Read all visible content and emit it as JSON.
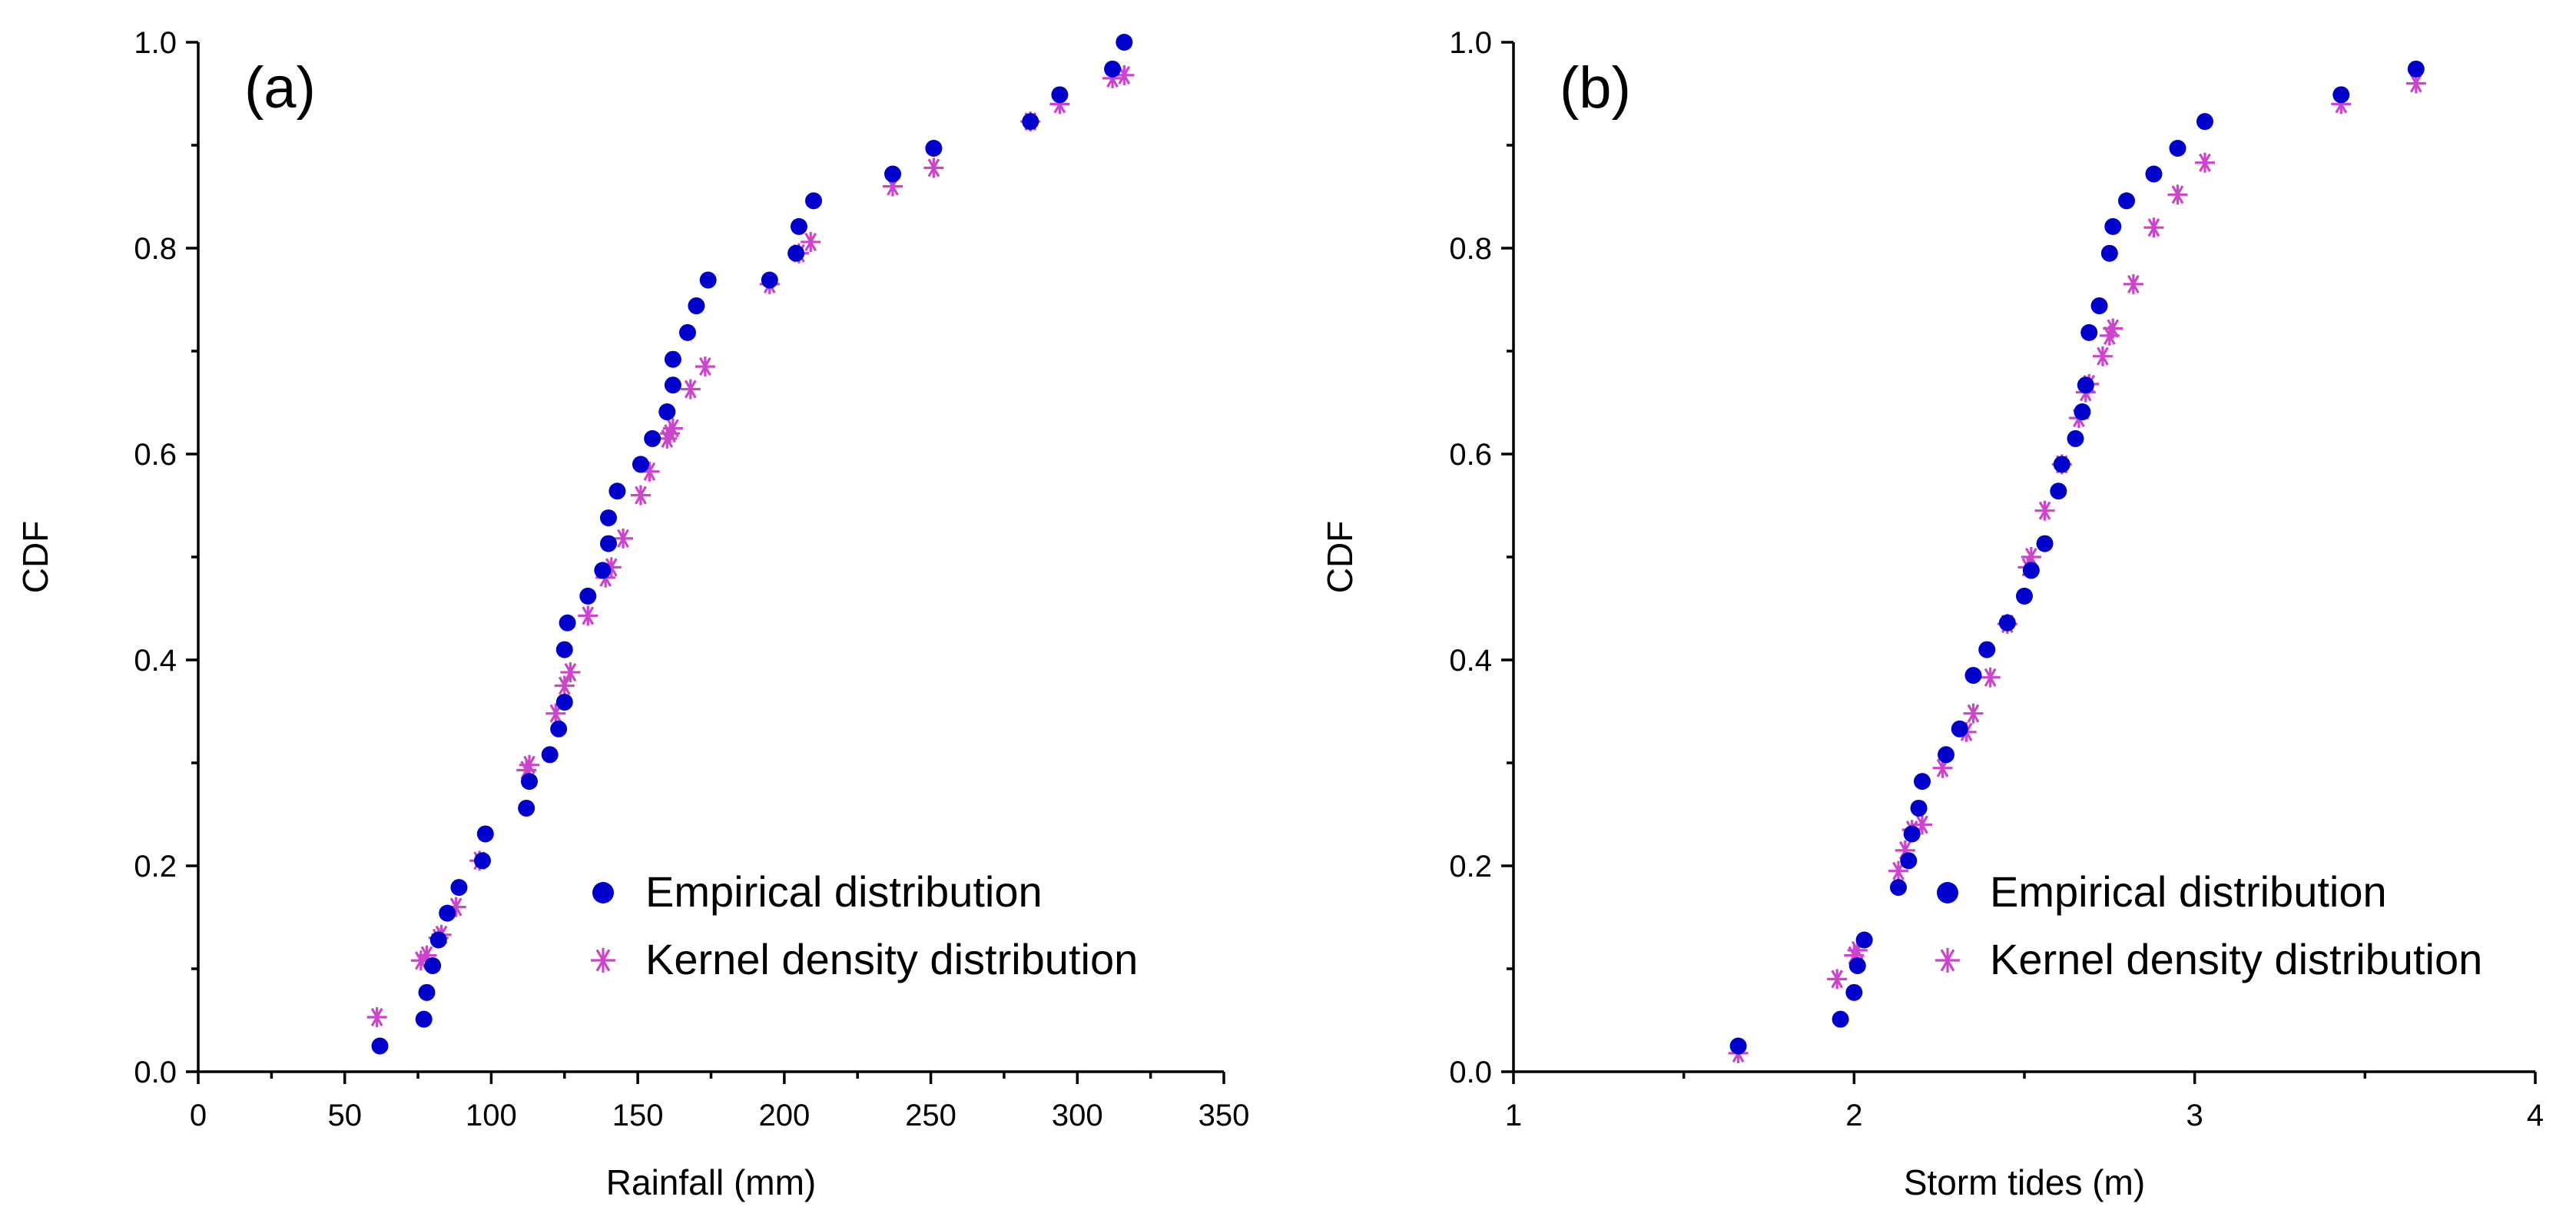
{
  "chart_data": [
    {
      "type": "scatter",
      "panel_label": "(a)",
      "xlabel": "Rainfall (mm)",
      "ylabel": "CDF",
      "xlim": [
        0,
        350
      ],
      "ylim": [
        0,
        1.0
      ],
      "xticks": [
        "0",
        "50",
        "100",
        "150",
        "200",
        "250",
        "300",
        "350"
      ],
      "yticks": [
        "0.0",
        "0.2",
        "0.4",
        "0.6",
        "0.8",
        "1.0"
      ],
      "legend_position": "bottom-right",
      "grid": false,
      "series": [
        {
          "name": "Empirical distribution",
          "marker": "circle",
          "color": "#0000CC",
          "x": [
            62,
            77,
            78,
            80,
            82,
            85,
            89,
            97,
            98,
            112,
            113,
            120,
            123,
            125,
            125,
            126,
            133,
            138,
            140,
            140,
            143,
            151,
            155,
            160,
            162,
            162,
            167,
            170,
            174,
            195,
            204,
            205,
            210,
            237,
            251,
            284,
            294,
            312,
            316
          ],
          "y": [
            0.025,
            0.051,
            0.077,
            0.103,
            0.128,
            0.154,
            0.179,
            0.205,
            0.231,
            0.256,
            0.282,
            0.308,
            0.333,
            0.359,
            0.41,
            0.436,
            0.462,
            0.487,
            0.513,
            0.538,
            0.564,
            0.59,
            0.615,
            0.641,
            0.667,
            0.692,
            0.718,
            0.744,
            0.769,
            0.769,
            0.795,
            0.821,
            0.846,
            0.872,
            0.897,
            0.923,
            0.949,
            0.974,
            1.0
          ]
        },
        {
          "name": "Kernel density distribution",
          "marker": "asterisk",
          "color": "#CC44CC",
          "x": [
            61,
            76,
            78,
            82,
            83,
            88,
            96,
            112,
            113,
            122,
            125,
            127,
            133,
            139,
            141,
            145,
            151,
            154,
            160,
            161,
            162,
            168,
            173,
            195,
            205,
            209,
            237,
            251,
            284,
            294,
            312,
            316
          ],
          "y": [
            0.053,
            0.108,
            0.113,
            0.13,
            0.133,
            0.16,
            0.205,
            0.293,
            0.298,
            0.348,
            0.375,
            0.388,
            0.443,
            0.48,
            0.49,
            0.518,
            0.56,
            0.583,
            0.615,
            0.62,
            0.625,
            0.663,
            0.685,
            0.765,
            0.795,
            0.806,
            0.86,
            0.878,
            0.923,
            0.94,
            0.965,
            0.968
          ]
        }
      ]
    },
    {
      "type": "scatter",
      "panel_label": "(b)",
      "xlabel": "Storm tides (m)",
      "ylabel": "CDF",
      "xlim": [
        1,
        4
      ],
      "ylim": [
        0,
        1.0
      ],
      "xticks": [
        "1",
        "2",
        "3",
        "4"
      ],
      "yticks": [
        "0.0",
        "0.2",
        "0.4",
        "0.6",
        "0.8",
        "1.0"
      ],
      "legend_position": "bottom-right",
      "grid": false,
      "series": [
        {
          "name": "Empirical distribution",
          "marker": "circle",
          "color": "#0000CC",
          "x": [
            1.66,
            1.96,
            2.0,
            2.01,
            2.03,
            2.13,
            2.16,
            2.17,
            2.19,
            2.2,
            2.27,
            2.31,
            2.35,
            2.39,
            2.45,
            2.5,
            2.52,
            2.56,
            2.6,
            2.61,
            2.65,
            2.67,
            2.68,
            2.69,
            2.72,
            2.75,
            2.76,
            2.8,
            2.88,
            2.95,
            3.03,
            3.43,
            3.65
          ],
          "y": [
            0.025,
            0.051,
            0.077,
            0.103,
            0.128,
            0.179,
            0.205,
            0.231,
            0.256,
            0.282,
            0.308,
            0.333,
            0.385,
            0.41,
            0.436,
            0.462,
            0.487,
            0.513,
            0.564,
            0.59,
            0.615,
            0.641,
            0.667,
            0.718,
            0.744,
            0.795,
            0.821,
            0.846,
            0.872,
            0.897,
            0.923,
            0.949,
            0.974
          ]
        },
        {
          "name": "Kernel density distribution",
          "marker": "asterisk",
          "color": "#CC44CC",
          "x": [
            1.66,
            1.95,
            2.0,
            2.01,
            2.13,
            2.15,
            2.17,
            2.2,
            2.26,
            2.33,
            2.35,
            2.4,
            2.45,
            2.51,
            2.52,
            2.56,
            2.61,
            2.66,
            2.68,
            2.69,
            2.73,
            2.75,
            2.76,
            2.82,
            2.88,
            2.95,
            3.03,
            3.43,
            3.65
          ],
          "y": [
            0.018,
            0.09,
            0.113,
            0.118,
            0.195,
            0.215,
            0.235,
            0.24,
            0.295,
            0.33,
            0.348,
            0.383,
            0.435,
            0.49,
            0.5,
            0.545,
            0.59,
            0.635,
            0.66,
            0.668,
            0.695,
            0.715,
            0.722,
            0.765,
            0.82,
            0.852,
            0.883,
            0.94,
            0.96
          ]
        }
      ]
    }
  ]
}
